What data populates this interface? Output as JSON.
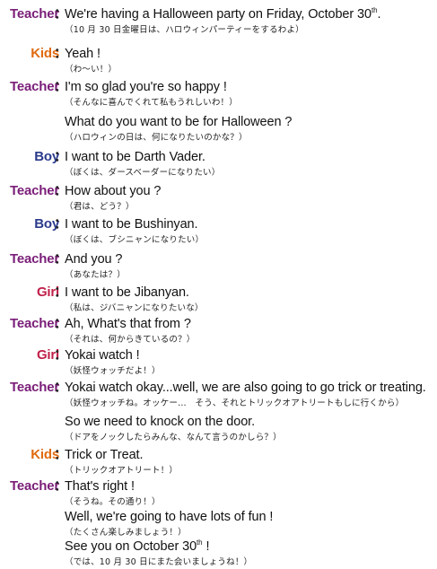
{
  "colors": {
    "teacher": "#7a1e78",
    "kids": "#e06a10",
    "boy": "#2a3a8c",
    "girl": "#c1204a"
  },
  "colon": "：",
  "lines": [
    {
      "speaker": "Teacher",
      "role": "teacher",
      "en": "We're  having a Halloween party on Friday, October 30",
      "sup": "th",
      "en_after": ".",
      "jp": "（10 月 30 日金曜日は、ハロウィンパーティーをするわよ）"
    },
    {
      "speaker": "Kids",
      "role": "kids",
      "en": "Yeah  !",
      "jp": "（わ～い！）"
    },
    {
      "speaker": "Teacher",
      "role": "teacher",
      "en": "I'm so glad you're so happy  !",
      "jp": "（そんなに喜んでくれて私もうれしいわ！）"
    },
    {
      "speaker": "",
      "role": "teacher",
      "en": "What do you want to be for Halloween  ?",
      "jp": "（ハロウィンの日は、何になりたいのかな？）"
    },
    {
      "speaker": "Boy",
      "role": "boy",
      "en": "I want to be Darth Vader.",
      "jp": "（ぼくは、ダースベーダーになりたい）"
    },
    {
      "speaker": "Teacher",
      "role": "teacher",
      "en": "How about you  ?",
      "jp": "（君は、どう？）"
    },
    {
      "speaker": "Boy",
      "role": "boy",
      "en": "I want to be Bushinyan.",
      "jp": "（ぼくは、ブシニャンになりたい）"
    },
    {
      "speaker": "Teacher",
      "role": "teacher",
      "en": "And you  ?",
      "jp": "（あなたは？）"
    },
    {
      "speaker": "Girl",
      "role": "girl",
      "en": "I want to be Jibanyan.",
      "jp": "（私は、ジバニャンになりたいな）"
    },
    {
      "speaker": "Teacher",
      "role": "teacher",
      "en": "Ah, What's that from  ?",
      "jp": "（それは、何からきているの？）"
    },
    {
      "speaker": "Girl",
      "role": "girl",
      "en": "Yokai watch  !",
      "jp": "（妖怪ウォッチだよ！）"
    },
    {
      "speaker": "Teacher",
      "role": "teacher",
      "en": "Yokai watch okay...well, we are also going to go trick or treating.",
      "jp": "（妖怪ウォッチね。オッケー…　そう、それとトリックオアトリートもしに行くから）"
    },
    {
      "speaker": "",
      "role": "teacher",
      "en": "So we need to knock on the door.",
      "jp": "（ドアをノックしたらみんな、なんて言うのかしら？）"
    },
    {
      "speaker": "Kids",
      "role": "kids",
      "en": "Trick or Treat.",
      "jp": "（トリックオアトリート！）"
    },
    {
      "speaker": "Teacher",
      "role": "teacher",
      "en": "That's  right  !",
      "jp": "（そうね。その通り！）"
    },
    {
      "speaker": "",
      "role": "teacher",
      "en": " Well, we're going to have lots of fun  !",
      "jp": "（たくさん楽しみましょう！）"
    },
    {
      "speaker": "",
      "role": "teacher",
      "en": "See you on October 30",
      "sup": "th",
      "en_after": "  !",
      "jp": "（では、10 月 30 日にまた会いましょうね！）"
    }
  ]
}
